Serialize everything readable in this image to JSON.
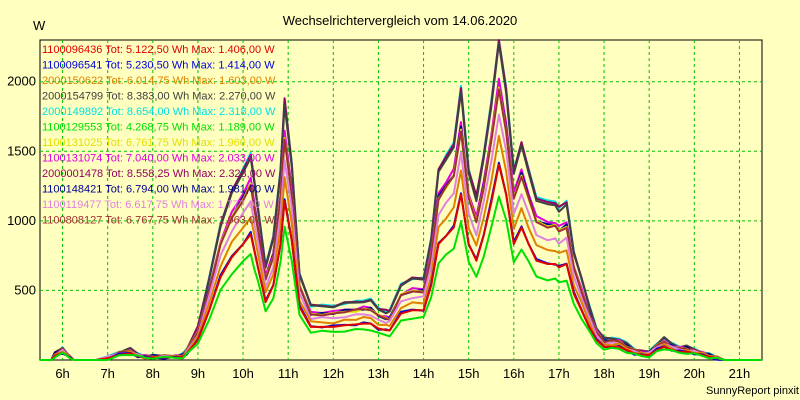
{
  "chart_data": {
    "type": "line",
    "title": "Wechselrichtervergleich vom 14.06.2020",
    "ylabel": "W",
    "xlabel": "",
    "footer": "SunnyReport pinxit",
    "ylim": [
      0,
      2300
    ],
    "xlim": [
      5.5,
      21.5
    ],
    "yticks": [
      500,
      1000,
      1500,
      2000
    ],
    "ytick_labels": [
      "500",
      "1000",
      "1500",
      "2000"
    ],
    "xticks": [
      6,
      7,
      8,
      9,
      10,
      11,
      12,
      13,
      14,
      15,
      16,
      17,
      18,
      19,
      20,
      21
    ],
    "xtick_labels": [
      "6h",
      "7h",
      "8h",
      "9h",
      "10h",
      "11h",
      "12h",
      "13h",
      "14h",
      "15h",
      "16h",
      "17h",
      "18h",
      "19h",
      "20h",
      "21h"
    ],
    "grid": true,
    "legend_position": "top-left",
    "x": [
      5.5,
      5.75,
      5.83,
      6.0,
      6.17,
      6.25,
      6.5,
      6.75,
      7.0,
      7.25,
      7.5,
      7.67,
      7.83,
      8.0,
      8.25,
      8.5,
      8.67,
      8.75,
      9.0,
      9.25,
      9.5,
      9.75,
      10.0,
      10.17,
      10.25,
      10.33,
      10.5,
      10.67,
      10.83,
      10.92,
      11.08,
      11.25,
      11.5,
      11.75,
      12.0,
      12.25,
      12.5,
      12.67,
      12.83,
      13.0,
      13.17,
      13.25,
      13.5,
      13.75,
      14.0,
      14.17,
      14.33,
      14.5,
      14.67,
      14.83,
      15.0,
      15.17,
      15.33,
      15.5,
      15.67,
      15.83,
      16.0,
      16.17,
      16.33,
      16.5,
      16.75,
      16.92,
      17.0,
      17.17,
      17.33,
      17.5,
      17.67,
      17.83,
      18.0,
      18.17,
      18.33,
      18.5,
      18.67,
      18.83,
      19.0,
      19.17,
      19.33,
      19.5,
      19.67,
      19.83,
      20.0,
      20.17,
      20.33,
      20.5,
      20.67,
      20.83,
      21.0,
      21.17,
      21.5
    ],
    "series_base": [
      0,
      0,
      25,
      45,
      12,
      0,
      0,
      0,
      10,
      30,
      40,
      22,
      15,
      15,
      15,
      15,
      20,
      40,
      120,
      300,
      500,
      620,
      700,
      760,
      660,
      560,
      350,
      450,
      700,
      960,
      720,
      320,
      200,
      200,
      200,
      210,
      215,
      220,
      220,
      190,
      180,
      180,
      280,
      300,
      300,
      450,
      700,
      750,
      800,
      1000,
      700,
      600,
      750,
      950,
      1180,
      1000,
      700,
      800,
      700,
      600,
      580,
      580,
      560,
      580,
      400,
      300,
      200,
      120,
      80,
      80,
      80,
      60,
      40,
      30,
      30,
      60,
      80,
      60,
      50,
      50,
      40,
      30,
      20,
      10,
      0,
      0,
      0,
      0,
      0
    ],
    "series": [
      {
        "name": "1100096436",
        "label": "1100096436 Tot: 5.122,50 Wh Max: 1.406,00 W",
        "color": "#e00000",
        "scale": 1.19,
        "jitter": 0
      },
      {
        "name": "1100096541",
        "label": "1100096541 Tot: 5.230,50 Wh Max: 1.414,00 W",
        "color": "#0000e0",
        "scale": 1.2,
        "jitter": 1
      },
      {
        "name": "2000150622",
        "label": "2000150622 Tot: 6.014,75 Wh Max: 1.603,00 W",
        "color": "#e08000",
        "scale": 1.36,
        "jitter": 2
      },
      {
        "name": "2000154799",
        "label": "2000154799 Tot: 8.383,00 Wh Max: 2.270,00 W",
        "color": "#404040",
        "scale": 1.92,
        "jitter": 3
      },
      {
        "name": "2000149892",
        "label": "2000149892 Tot: 8.654,00 Wh Max: 2.318,00 W",
        "color": "#00e0e0",
        "scale": 1.96,
        "jitter": 4
      },
      {
        "name": "1100129553",
        "label": "1100129553 Tot: 4.268,75 Wh Max: 1.189,00 W",
        "color": "#00e000",
        "scale": 1.0,
        "jitter": 5
      },
      {
        "name": "1100131025",
        "label": "1100131025 Tot: 6.761,75 Wh Max: 1.960,00 W",
        "color": "#e0e000",
        "scale": 1.66,
        "jitter": 6
      },
      {
        "name": "1100131074",
        "label": "1100131074 Tot: 7.040,00 Wh Max: 2.033,00 W",
        "color": "#e000e0",
        "scale": 1.71,
        "jitter": 7
      },
      {
        "name": "2000001478",
        "label": "2000001478 Tot: 8.558,25 Wh Max: 2.323,00 W",
        "color": "#900060",
        "scale": 1.95,
        "jitter": 8
      },
      {
        "name": "1100148421",
        "label": "1100148421 Tot: 6.794,00 Wh Max: 1.981,00 W",
        "color": "#000090",
        "scale": 1.67,
        "jitter": 9
      },
      {
        "name": "1100119477",
        "label": "1100119477 Tot: 6.617,75 Wh Max: 1.777,00 W",
        "color": "#e080e0",
        "scale": 1.5,
        "jitter": 10
      },
      {
        "name": "1100808127",
        "label": "1100808127 Tot: 6.767,75 Wh Max: 1.963,00 W",
        "color": "#a03030",
        "scale": 1.65,
        "jitter": 11
      }
    ]
  }
}
